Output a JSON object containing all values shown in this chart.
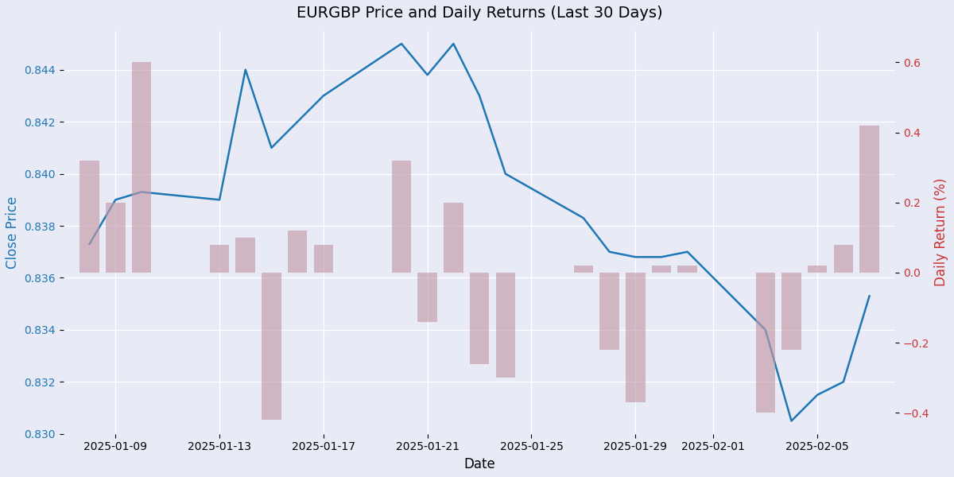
{
  "title": "EURGBP Price and Daily Returns (Last 30 Days)",
  "xlabel": "Date",
  "ylabel_left": "Close Price",
  "ylabel_right": "Daily Return (%)",
  "dates": [
    "2025-01-08",
    "2025-01-09",
    "2025-01-10",
    "2025-01-13",
    "2025-01-14",
    "2025-01-15",
    "2025-01-16",
    "2025-01-17",
    "2025-01-20",
    "2025-01-21",
    "2025-01-22",
    "2025-01-23",
    "2025-01-24",
    "2025-01-27",
    "2025-01-28",
    "2025-01-29",
    "2025-01-30",
    "2025-01-31",
    "2025-02-03",
    "2025-02-04",
    "2025-02-05",
    "2025-02-06",
    "2025-02-07"
  ],
  "close_prices": [
    0.8373,
    0.839,
    0.8393,
    0.839,
    0.844,
    0.841,
    0.842,
    0.843,
    0.845,
    0.8438,
    0.845,
    0.843,
    0.84,
    0.8383,
    0.837,
    0.8368,
    0.8368,
    0.837,
    0.834,
    0.8305,
    0.8315,
    0.832,
    0.8353
  ],
  "daily_returns": [
    0.32,
    0.2,
    0.6,
    0.08,
    0.1,
    -0.42,
    0.12,
    0.08,
    0.32,
    -0.14,
    0.2,
    -0.26,
    -0.3,
    0.02,
    -0.22,
    -0.37,
    0.02,
    0.02,
    -0.4,
    -0.22,
    0.02,
    0.08,
    0.42
  ],
  "price_ylim": [
    0.83,
    0.8455
  ],
  "return_ylim": [
    -0.46,
    0.69
  ],
  "bg_color": "#e8eaf6",
  "plot_bg_color": "#e8eaf6",
  "line_color": "#1f77b4",
  "bar_color": "#c49ba8",
  "bar_alpha": 0.65,
  "left_label_color": "#1f77b4",
  "right_label_color": "#cc3333",
  "grid_color": "#ffffff",
  "xtick_dates": [
    "2025-01-09",
    "2025-01-13",
    "2025-01-17",
    "2025-01-21",
    "2025-01-25",
    "2025-01-29",
    "2025-02-01",
    "2025-02-05"
  ],
  "title_fontsize": 14,
  "label_fontsize": 12,
  "tick_fontsize": 10,
  "line_width": 1.8,
  "bar_width": 0.75
}
